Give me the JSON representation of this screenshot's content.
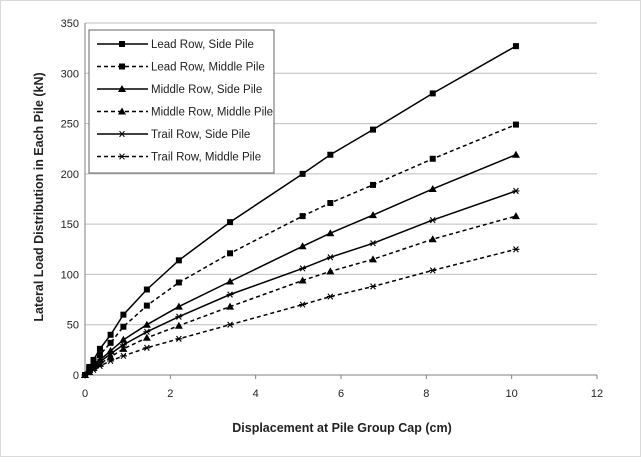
{
  "chart_data": {
    "type": "line",
    "title": "",
    "xlabel": "Displacement at Pile Group Cap (cm)",
    "ylabel": "Lateral Load Distribution in Each Pile (kN)",
    "xlim": [
      0,
      12
    ],
    "ylim": [
      0,
      350
    ],
    "xticks": [
      0,
      2,
      4,
      6,
      8,
      10,
      12
    ],
    "yticks": [
      0,
      50,
      100,
      150,
      200,
      250,
      300,
      350
    ],
    "grid": "horizontal",
    "legend_position": "top-left",
    "x": [
      0,
      0.1,
      0.2,
      0.35,
      0.6,
      0.9,
      1.45,
      2.2,
      3.4,
      5.1,
      5.75,
      6.75,
      8.15,
      10.1
    ],
    "series": [
      {
        "name": "Lead Row, Side Pile",
        "marker": "square",
        "dash": "solid",
        "values": [
          0,
          8,
          15,
          26,
          40,
          60,
          85,
          114,
          152,
          200,
          219,
          244,
          280,
          327
        ]
      },
      {
        "name": "Lead Row, Middle Pile",
        "marker": "square",
        "dash": "dashed",
        "values": [
          0,
          6,
          12,
          20,
          32,
          48,
          69,
          92,
          121,
          158,
          171,
          189,
          215,
          249
        ]
      },
      {
        "name": "Middle Row, Side Pile",
        "marker": "triangle",
        "dash": "solid",
        "values": [
          0,
          5,
          9,
          15,
          24,
          35,
          50,
          68,
          93,
          128,
          141,
          159,
          185,
          219
        ]
      },
      {
        "name": "Middle Row, Middle Pile",
        "marker": "triangle",
        "dash": "dashed",
        "values": [
          0,
          3,
          7,
          11,
          18,
          26,
          37,
          49,
          68,
          94,
          103,
          115,
          135,
          158
        ]
      },
      {
        "name": "Trail Row, Side Pile",
        "marker": "star",
        "dash": "solid",
        "values": [
          0,
          4,
          8,
          13,
          21,
          30,
          43,
          58,
          80,
          106,
          117,
          131,
          154,
          183
        ]
      },
      {
        "name": "Trail Row, Middle Pile",
        "marker": "star",
        "dash": "dashed",
        "values": [
          0,
          3,
          5,
          9,
          14,
          19,
          27,
          36,
          50,
          70,
          78,
          88,
          104,
          125
        ]
      }
    ]
  }
}
